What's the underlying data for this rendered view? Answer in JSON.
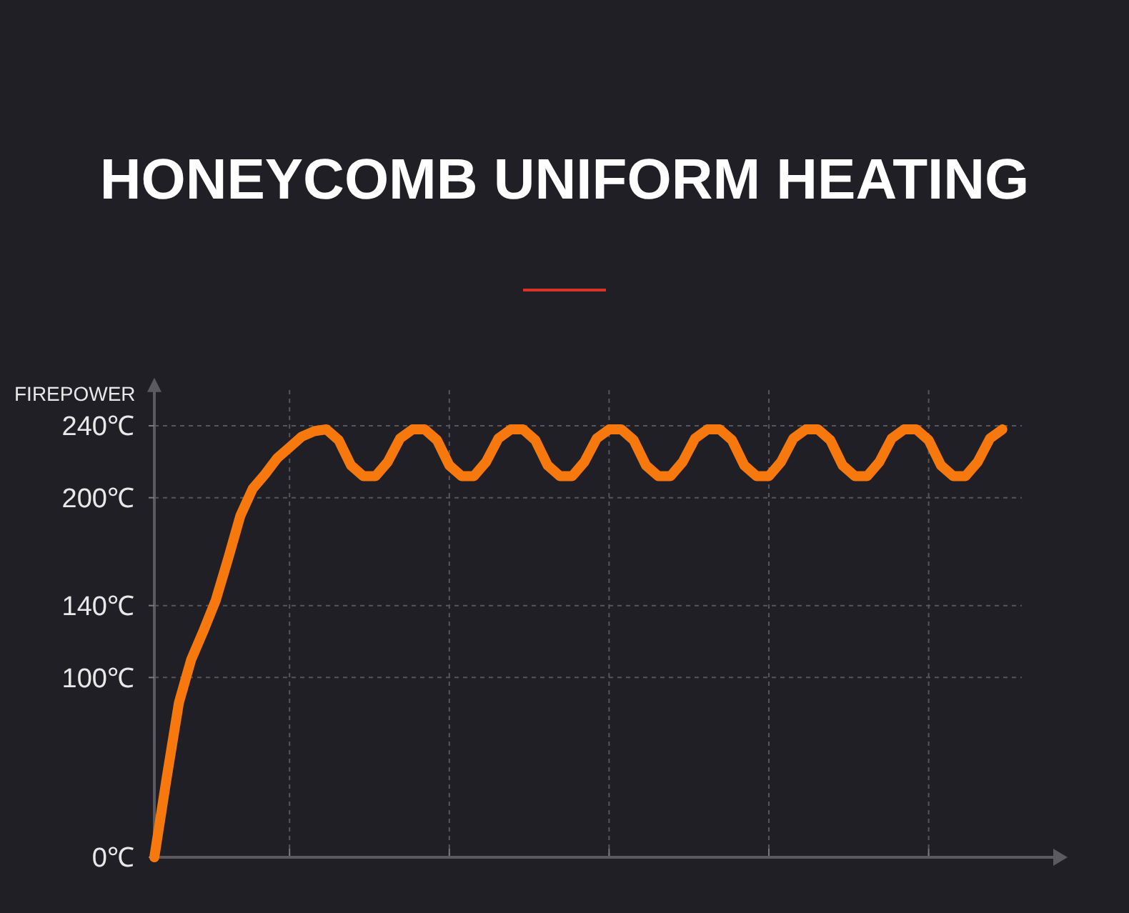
{
  "chart_data": {
    "type": "line",
    "title": "HONEYCOMB UNIFORM HEATING",
    "ylabel": "FIREPOWER",
    "categories": [
      null,
      null,
      null,
      null,
      null,
      null,
      null,
      null,
      null,
      null,
      null,
      null,
      null,
      null,
      null,
      null,
      null,
      null,
      null,
      null,
      null,
      null,
      null,
      null,
      null,
      null,
      null,
      null,
      null,
      null,
      null,
      null,
      null,
      null,
      null,
      null,
      null,
      null,
      null,
      null,
      null,
      null,
      null,
      null,
      null,
      null,
      null,
      null,
      null,
      null,
      null,
      null,
      null,
      null,
      null,
      null,
      null,
      null,
      null,
      null,
      null,
      null,
      null,
      null,
      null,
      null,
      null,
      null,
      null,
      null
    ],
    "ylim": [
      0,
      262
    ],
    "yticks": [
      {
        "value": 0,
        "label": "0℃"
      },
      {
        "value": 100,
        "label": "100℃"
      },
      {
        "value": 140,
        "label": "140℃"
      },
      {
        "value": 200,
        "label": "200℃"
      },
      {
        "value": 240,
        "label": "240℃"
      }
    ],
    "grid": true,
    "marker": "none",
    "line_style": "solid",
    "series": [
      {
        "color": "#f7780c",
        "values": [
          0,
          44,
          86,
          110,
          126,
          143,
          166,
          190,
          205,
          213,
          222,
          228,
          234,
          237,
          238,
          232,
          218,
          212,
          212,
          220,
          233,
          238,
          238,
          232,
          218,
          212,
          212,
          220,
          233,
          238,
          238,
          232,
          218,
          212,
          212,
          220,
          233,
          238,
          238,
          232,
          218,
          212,
          212,
          220,
          233,
          238,
          238,
          232,
          218,
          212,
          212,
          220,
          233,
          238,
          238,
          232,
          218,
          212,
          212,
          220,
          233,
          238,
          238,
          232,
          218,
          212,
          212,
          220,
          233,
          238
        ]
      }
    ]
  }
}
